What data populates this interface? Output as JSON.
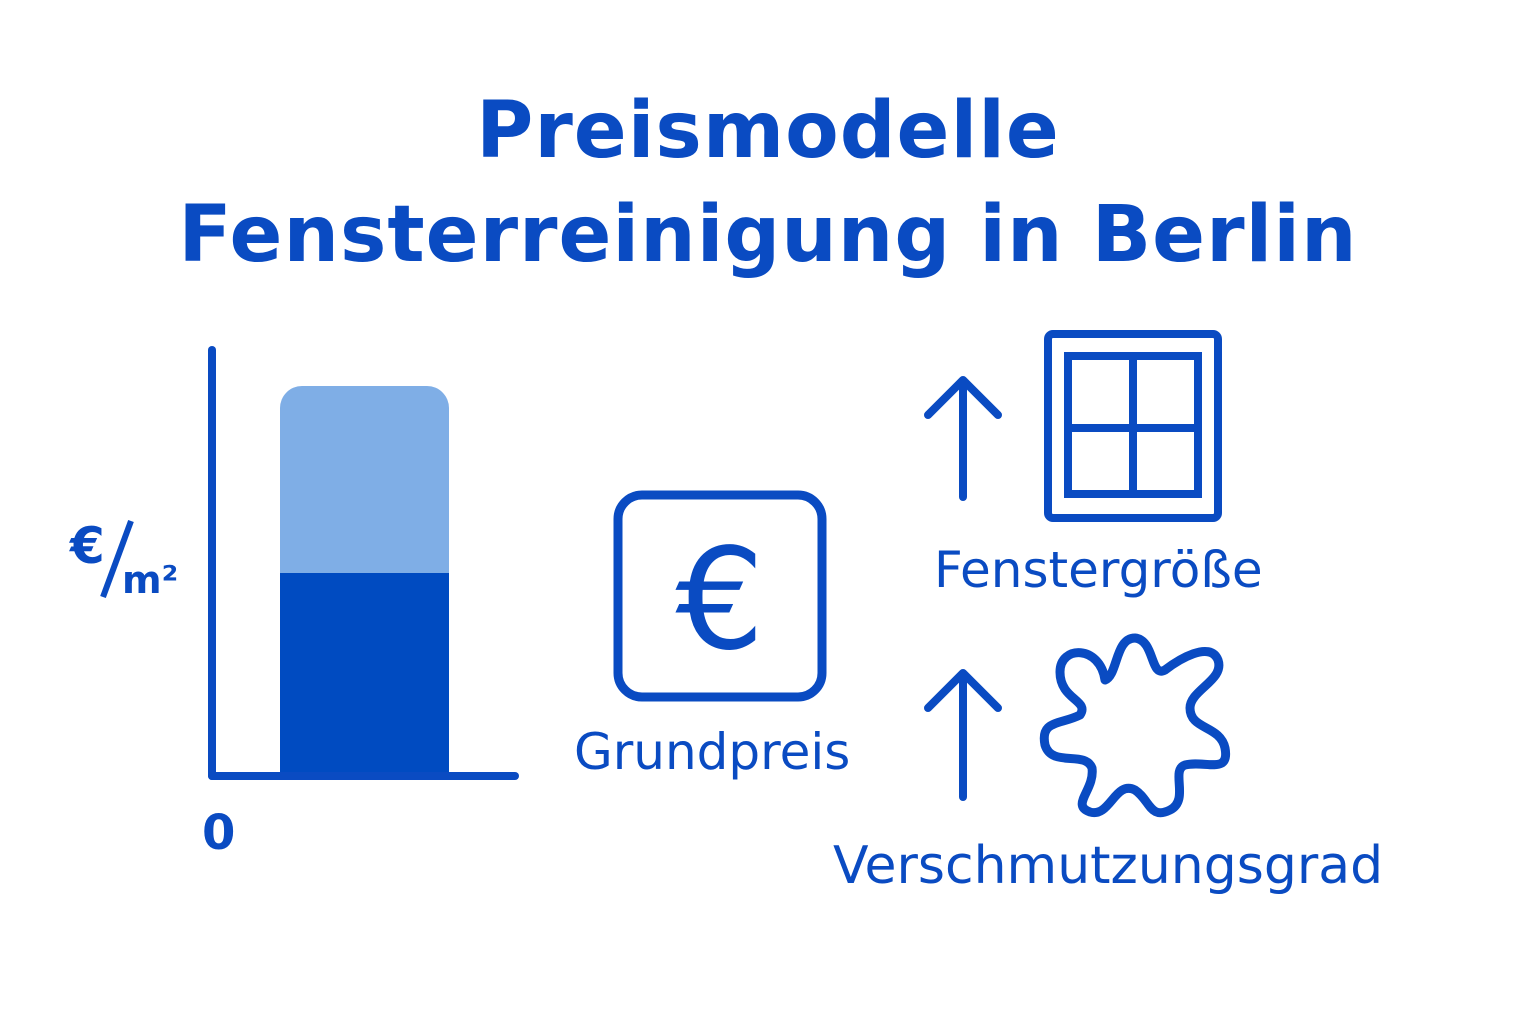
{
  "title": {
    "line1": "Preismodelle",
    "line2": "Fensterreinigung in Berlin"
  },
  "chart": {
    "y_axis_label_currency": "€",
    "y_axis_label_unit": "m²",
    "zero_label": "0",
    "segments": [
      {
        "role": "base",
        "color": "#004bc1"
      },
      {
        "role": "top",
        "color": "#7faee6"
      }
    ]
  },
  "icons": {
    "euro": {
      "icon": "euro-icon",
      "symbol": "€",
      "label": "Grundpreis"
    },
    "window": {
      "icon": "window-icon",
      "label": "Fenstergröße"
    },
    "dirt": {
      "icon": "stain-icon",
      "label": "Verschmutzungsgrad"
    },
    "arrows": "arrow-up-icon"
  },
  "colors": {
    "primary": "#0a4bc2",
    "light": "#7faee6"
  }
}
